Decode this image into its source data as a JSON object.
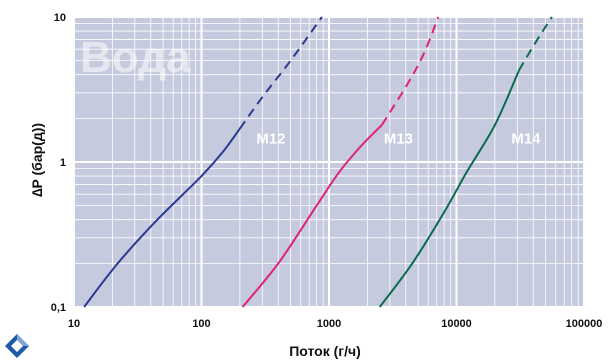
{
  "chart_data": {
    "type": "line",
    "watermark": "Вода",
    "xlabel": "Поток (г/ч)",
    "ylabel": "∆P (бар(д))",
    "x_scale": "log",
    "y_scale": "log",
    "xlim": [
      10,
      100000
    ],
    "ylim": [
      0.1,
      10
    ],
    "x_ticks": [
      10,
      100,
      1000,
      10000,
      100000
    ],
    "x_tick_labels": [
      "10",
      "100",
      "1000",
      "10000",
      "100000"
    ],
    "y_ticks": [
      0.1,
      1,
      10
    ],
    "y_tick_labels": [
      "0,1",
      "1",
      "10"
    ],
    "grid": true,
    "background_color": "#c5cade",
    "grid_color": "#ffffff",
    "series": [
      {
        "name": "M12",
        "color": "#2b3990",
        "solid": [
          [
            12,
            0.1
          ],
          [
            22,
            0.2
          ],
          [
            45,
            0.4
          ],
          [
            100,
            0.8
          ],
          [
            150,
            1.2
          ],
          [
            200,
            1.7
          ]
        ],
        "dashed": [
          [
            200,
            1.7
          ],
          [
            300,
            2.8
          ],
          [
            500,
            5.0
          ],
          [
            880,
            10
          ]
        ]
      },
      {
        "name": "M13",
        "color": "#e0227a",
        "solid": [
          [
            210,
            0.1
          ],
          [
            400,
            0.2
          ],
          [
            800,
            0.5
          ],
          [
            1200,
            0.85
          ],
          [
            1800,
            1.3
          ],
          [
            2600,
            1.8
          ]
        ],
        "dashed": [
          [
            2600,
            1.8
          ],
          [
            4000,
            3.3
          ],
          [
            5500,
            5.5
          ],
          [
            7200,
            10
          ]
        ]
      },
      {
        "name": "M14",
        "color": "#0a6b50",
        "solid": [
          [
            2500,
            0.1
          ],
          [
            4500,
            0.2
          ],
          [
            8000,
            0.45
          ],
          [
            12000,
            0.85
          ],
          [
            20000,
            1.8
          ],
          [
            31000,
            4.3
          ]
        ],
        "dashed": [
          [
            31000,
            4.3
          ],
          [
            40000,
            6.3
          ],
          [
            56000,
            10
          ]
        ]
      }
    ],
    "annotations": [
      {
        "text": "M12",
        "x": 300,
        "y": 1.45
      },
      {
        "text": "M13",
        "x": 3000,
        "y": 1.45
      },
      {
        "text": "M14",
        "x": 30000,
        "y": 1.45
      }
    ]
  }
}
